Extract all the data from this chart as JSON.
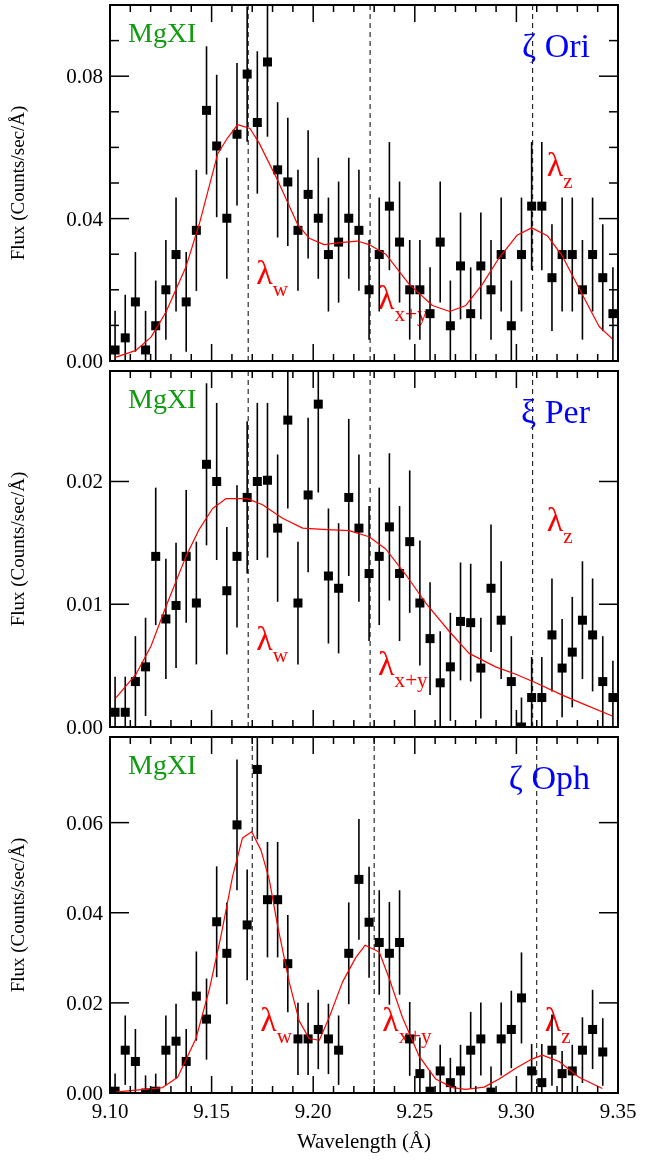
{
  "chart_data": [
    {
      "type": "scatter",
      "ylabel": "Flux (Counts/sec/Å)",
      "xlim": [
        9.1,
        9.35
      ],
      "ylim": [
        0,
        0.1
      ],
      "tick_labels": "y",
      "xticks": [
        9.1,
        {
          "value": 9.11,
          "label": null
        },
        {
          "value": 9.12,
          "label": null
        },
        {
          "value": 9.13,
          "label": null
        },
        {
          "value": 9.14,
          "label": null
        },
        9.15,
        {
          "value": 9.16,
          "label": null
        },
        {
          "value": 9.17,
          "label": null
        },
        {
          "value": 9.18,
          "label": null
        },
        {
          "value": 9.19,
          "label": null
        },
        9.2,
        {
          "value": 9.21,
          "label": null
        },
        {
          "value": 9.22,
          "label": null
        },
        {
          "value": 9.23,
          "label": null
        },
        {
          "value": 9.24,
          "label": null
        },
        9.25,
        {
          "value": 9.26,
          "label": null
        },
        {
          "value": 9.27,
          "label": null
        },
        {
          "value": 9.28,
          "label": null
        },
        {
          "value": 9.29,
          "label": null
        },
        9.3,
        {
          "value": 9.31,
          "label": null
        },
        {
          "value": 9.32,
          "label": null
        },
        {
          "value": 9.33,
          "label": null
        },
        {
          "value": 9.34,
          "label": null
        },
        9.35
      ],
      "yticks": [
        {
          "value": 0,
          "label": "0.00"
        },
        {
          "value": 0.01,
          "label": null
        },
        {
          "value": 0.02,
          "label": null
        },
        {
          "value": 0.03,
          "label": null
        },
        0.04,
        {
          "value": 0.05,
          "label": null
        },
        {
          "value": 0.06,
          "label": null
        },
        {
          "value": 0.07,
          "label": null
        },
        0.08,
        {
          "value": 0.09,
          "label": null
        }
      ],
      "annotations": [
        "MgXI",
        "ζ Ori",
        "λ$_{w}$",
        "λ$_{x+y}$",
        "λ$_{z}$"
      ],
      "ref_lines": [
        {
          "axis": "x",
          "value": 9.168,
          "color": "#000000",
          "line_style": "dashed"
        },
        {
          "axis": "x",
          "value": 9.228,
          "color": "#000000",
          "line_style": "dashed"
        },
        {
          "axis": "x",
          "value": 9.308,
          "color": "#000000",
          "line_style": "dashed"
        }
      ],
      "series": [
        {
          "type": "scatter",
          "color": "#000000",
          "marker": "square",
          "x": [
            9.1025,
            9.1075,
            9.1125,
            9.1175,
            9.1225,
            9.1275,
            9.1325,
            9.1375,
            9.1425,
            9.1475,
            9.1525,
            9.1575,
            9.1625,
            9.1675,
            9.1725,
            9.1775,
            9.1825,
            9.1875,
            9.1925,
            9.1975,
            9.2025,
            9.2075,
            9.2125,
            9.2175,
            9.2225,
            9.2275,
            9.2325,
            9.2375,
            9.2425,
            9.2475,
            9.2525,
            9.2575,
            9.2625,
            9.2675,
            9.2725,
            9.2775,
            9.2825,
            9.2875,
            9.2925,
            9.2975,
            9.3025,
            9.3075,
            9.3125,
            9.3175,
            9.3225,
            9.3275,
            9.3325,
            9.3375,
            9.3425,
            9.3475
          ],
          "values": [
            0.0031,
            0.0065,
            0.0166,
            0.0031,
            0.0099,
            0.02,
            0.0299,
            0.0166,
            0.0367,
            0.0704,
            0.0604,
            0.0401,
            0.0637,
            0.0806,
            0.067,
            0.084,
            0.0537,
            0.0503,
            0.0367,
            0.0468,
            0.0401,
            0.0299,
            0.0334,
            0.0401,
            0.0367,
            0.02,
            0.0299,
            0.0435,
            0.0334,
            0.02,
            0.02,
            0.0133,
            0.0334,
            0.0099,
            0.0267,
            0.0133,
            0.0267,
            0.02,
            0.0299,
            0.0099,
            0.0299,
            0.0435,
            0.0435,
            0.0234,
            0.0299,
            0.0299,
            0.02,
            0.0299,
            0.0234,
            0.0133
          ],
          "errors": [
            [
              0,
              0.0141
            ],
            [
              0,
              0.0186
            ],
            0.014,
            [
              0,
              0.0141
            ],
            [
              0,
              0.0226
            ],
            0.014,
            0.016,
            0.014,
            0.017,
            0.018,
            0.02,
            0.017,
            0.02,
            0.019,
            0.02,
            [
              0.063,
              0.1
            ],
            0.019,
            0.018,
            0.017,
            0.018,
            0.017,
            0.016,
            0.017,
            0.017,
            0.017,
            0.014,
            0.016,
            0.018,
            0.017,
            0.014,
            0.014,
            0.013,
            0.017,
            [
              0,
              0.0226
            ],
            0.015,
            0.013,
            0.015,
            0.014,
            0.016,
            [
              0,
              0.0226
            ],
            0.016,
            0.018,
            0.018,
            0.015,
            0.016,
            0.016,
            0.014,
            0.016,
            0.015,
            0.013
          ]
        },
        {
          "type": "line",
          "color": "#ff0000",
          "marker": "none",
          "x": [
            9.1026,
            9.1128,
            9.1202,
            9.1275,
            9.1374,
            9.1439,
            9.153,
            9.1579,
            9.1628,
            9.1689,
            9.1734,
            9.1825,
            9.1923,
            9.198,
            9.2054,
            9.2144,
            9.2218,
            9.2275,
            9.2357,
            9.2472,
            9.2587,
            9.2672,
            9.2751,
            9.2833,
            9.2915,
            9.3005,
            9.3075,
            9.3152,
            9.3226,
            9.3325,
            9.3407,
            9.3472
          ],
          "values": [
            0.001,
            0.003,
            0.0067,
            0.0137,
            0.0265,
            0.0384,
            0.0582,
            0.0627,
            0.0664,
            0.0653,
            0.0612,
            0.0508,
            0.0384,
            0.0345,
            0.0327,
            0.0333,
            0.0337,
            0.0327,
            0.03,
            0.0216,
            0.0156,
            0.0139,
            0.0156,
            0.0216,
            0.029,
            0.0354,
            0.0374,
            0.0352,
            0.0295,
            0.0186,
            0.0097,
            0.0062
          ]
        }
      ]
    },
    {
      "type": "scatter",
      "ylabel": "Flux (Counts/sec/Å)",
      "xlim": [
        9.1,
        9.35
      ],
      "ylim": [
        0,
        0.029
      ],
      "tick_labels": "y",
      "xticks": [
        9.1,
        {
          "value": 9.11,
          "label": null
        },
        {
          "value": 9.12,
          "label": null
        },
        {
          "value": 9.13,
          "label": null
        },
        {
          "value": 9.14,
          "label": null
        },
        9.15,
        {
          "value": 9.16,
          "label": null
        },
        {
          "value": 9.17,
          "label": null
        },
        {
          "value": 9.18,
          "label": null
        },
        {
          "value": 9.19,
          "label": null
        },
        9.2,
        {
          "value": 9.21,
          "label": null
        },
        {
          "value": 9.22,
          "label": null
        },
        {
          "value": 9.23,
          "label": null
        },
        {
          "value": 9.24,
          "label": null
        },
        9.25,
        {
          "value": 9.26,
          "label": null
        },
        {
          "value": 9.27,
          "label": null
        },
        {
          "value": 9.28,
          "label": null
        },
        {
          "value": 9.29,
          "label": null
        },
        9.3,
        {
          "value": 9.31,
          "label": null
        },
        {
          "value": 9.32,
          "label": null
        },
        {
          "value": 9.33,
          "label": null
        },
        {
          "value": 9.34,
          "label": null
        },
        9.35
      ],
      "yticks": [
        {
          "value": 0,
          "label": "0.00"
        },
        0.01,
        0.02
      ],
      "annotations": [
        "MgXI",
        "ξ Per",
        "λ$_{w}$",
        "λ$_{x+y}$",
        "λ$_{z}$"
      ],
      "ref_lines": [
        {
          "axis": "x",
          "value": 9.168,
          "color": "#000000",
          "line_style": "dashed"
        },
        {
          "axis": "x",
          "value": 9.228,
          "color": "#000000",
          "line_style": "dashed"
        },
        {
          "axis": "x",
          "value": 9.308,
          "color": "#000000",
          "line_style": "dashed"
        }
      ],
      "series": [
        {
          "type": "scatter",
          "color": "#000000",
          "marker": "square",
          "x": [
            9.1025,
            9.1075,
            9.1125,
            9.1175,
            9.1225,
            9.1275,
            9.1325,
            9.1375,
            9.1425,
            9.1475,
            9.1525,
            9.1575,
            9.1625,
            9.1675,
            9.1725,
            9.1775,
            9.1825,
            9.1875,
            9.1925,
            9.1975,
            9.2025,
            9.2075,
            9.2125,
            9.2175,
            9.2225,
            9.2275,
            9.2325,
            9.2375,
            9.2425,
            9.2475,
            9.2525,
            9.2575,
            9.2625,
            9.2675,
            9.2725,
            9.2775,
            9.2825,
            9.2875,
            9.2925,
            9.2975,
            9.3025,
            9.3075,
            9.3125,
            9.3175,
            9.3225,
            9.3275,
            9.3325,
            9.3375,
            9.3425,
            9.3475
          ],
          "values": [
            0.0012,
            0.0012,
            0.0037,
            0.0049,
            0.0139,
            0.0088,
            0.0099,
            0.0139,
            0.0101,
            0.0214,
            0.02,
            0.0111,
            0.0139,
            0.0187,
            0.02,
            0.0201,
            0.0162,
            0.025,
            0.0101,
            0.0189,
            0.0263,
            0.0123,
            0.0113,
            0.0187,
            0.0162,
            0.0125,
            0.0139,
            0.0163,
            0.0125,
            0.0151,
            0.0101,
            0.0072,
            0.0036,
            0.0049,
            0.0086,
            0.0085,
            0.0048,
            0.0113,
            0.0087,
            0.0037,
            0.0,
            0.0024,
            0.0024,
            0.0075,
            0.0048,
            0.0061,
            0.0087,
            0.0075,
            0.0037,
            0.0024
          ],
          "errors": [
            [
              0,
              0.0041
            ],
            [
              0,
              0.0041
            ],
            0.0037,
            0.004,
            0.0056,
            0.0049,
            0.0051,
            0.0054,
            0.005,
            0.0066,
            0.0064,
            0.0052,
            0.0058,
            0.0062,
            0.0064,
            0.0063,
            0.006,
            [
              0.0178,
              0.029
            ],
            0.005,
            0.0063,
            [
              0.0191,
              0.029
            ],
            0.0055,
            0.0053,
            0.0064,
            0.006,
            0.0055,
            0.0056,
            0.006,
            0.0055,
            0.0058,
            0.0051,
            0.0046,
            [
              0,
              0.0078
            ],
            0.0044,
            0.0048,
            0.0048,
            0.0041,
            0.0052,
            0.0048,
            0.0037,
            [
              0,
              0.0024
            ],
            [
              0,
              0.0057
            ],
            [
              0,
              0.0057
            ],
            0.0046,
            0.004,
            0.0045,
            0.0048,
            0.0046,
            0.0037,
            [
              0,
              0.0054
            ]
          ]
        },
        {
          "type": "line",
          "color": "#ff0000",
          "marker": "none",
          "x": [
            9.103,
            9.1128,
            9.1202,
            9.1275,
            9.1374,
            9.1439,
            9.1505,
            9.157,
            9.1677,
            9.1751,
            9.1849,
            9.1948,
            9.2046,
            9.2177,
            9.2275,
            9.2357,
            9.2456,
            9.2554,
            9.2669,
            9.2767,
            9.2898,
            9.2997,
            9.3095,
            9.3226,
            9.3325,
            9.3472
          ],
          "values": [
            0.0024,
            0.0043,
            0.0066,
            0.0098,
            0.0139,
            0.0161,
            0.0178,
            0.0186,
            0.0186,
            0.0181,
            0.017,
            0.0162,
            0.0161,
            0.016,
            0.0155,
            0.0145,
            0.0124,
            0.0101,
            0.0078,
            0.006,
            0.0049,
            0.0043,
            0.0036,
            0.0026,
            0.0019,
            0.0009
          ]
        }
      ]
    },
    {
      "type": "scatter",
      "xlabel": "Wavelength (Å)",
      "ylabel": "Flux (Counts/sec/Å)",
      "xlim": [
        9.1,
        9.35
      ],
      "ylim": [
        0,
        0.079
      ],
      "xticks": [
        {
          "value": 9.1,
          "label": "9.10"
        },
        {
          "value": 9.11,
          "label": null
        },
        {
          "value": 9.12,
          "label": null
        },
        {
          "value": 9.13,
          "label": null
        },
        {
          "value": 9.14,
          "label": null
        },
        9.15,
        {
          "value": 9.16,
          "label": null
        },
        {
          "value": 9.17,
          "label": null
        },
        {
          "value": 9.18,
          "label": null
        },
        {
          "value": 9.19,
          "label": null
        },
        {
          "value": 9.2,
          "label": "9.20"
        },
        {
          "value": 9.21,
          "label": null
        },
        {
          "value": 9.22,
          "label": null
        },
        {
          "value": 9.23,
          "label": null
        },
        {
          "value": 9.24,
          "label": null
        },
        9.25,
        {
          "value": 9.26,
          "label": null
        },
        {
          "value": 9.27,
          "label": null
        },
        {
          "value": 9.28,
          "label": null
        },
        {
          "value": 9.29,
          "label": null
        },
        {
          "value": 9.3,
          "label": "9.30"
        },
        {
          "value": 9.31,
          "label": null
        },
        {
          "value": 9.32,
          "label": null
        },
        {
          "value": 9.33,
          "label": null
        },
        {
          "value": 9.34,
          "label": null
        },
        9.35
      ],
      "yticks": [
        {
          "value": 0,
          "label": "0.00"
        },
        0.02,
        0.04,
        0.06
      ],
      "annotations": [
        "MgXI",
        "ζ Oph",
        "λ$_{w}$",
        "λ$_{x+y}$",
        "λ$_{z}$"
      ],
      "ref_lines": [
        {
          "axis": "x",
          "value": 9.17,
          "color": "#000000",
          "line_style": "dashed"
        },
        {
          "axis": "x",
          "value": 9.23,
          "color": "#000000",
          "line_style": "dashed"
        },
        {
          "axis": "x",
          "value": 9.31,
          "color": "#000000",
          "line_style": "dashed"
        }
      ],
      "series": [
        {
          "type": "scatter",
          "color": "#000000",
          "marker": "square",
          "x": [
            9.1025,
            9.1075,
            9.1125,
            9.1175,
            9.1225,
            9.1275,
            9.1325,
            9.1375,
            9.1425,
            9.1475,
            9.1525,
            9.1575,
            9.1625,
            9.1675,
            9.1725,
            9.1775,
            9.1825,
            9.1875,
            9.1925,
            9.1975,
            9.2025,
            9.2075,
            9.2125,
            9.2175,
            9.2225,
            9.2275,
            9.2325,
            9.2375,
            9.2425,
            9.2475,
            9.2525,
            9.2575,
            9.2625,
            9.2675,
            9.2725,
            9.2775,
            9.2825,
            9.2875,
            9.2925,
            9.2975,
            9.3025,
            9.3075,
            9.3125,
            9.3175,
            9.3225,
            9.3275,
            9.3325,
            9.3375,
            9.3425
          ],
          "values": [
            0.0004,
            0.0095,
            0.007,
            0.0,
            0.0004,
            0.0095,
            0.0115,
            0.007,
            0.0215,
            0.0164,
            0.038,
            0.031,
            0.0595,
            0.0373,
            0.0718,
            0.0429,
            0.0429,
            0.0287,
            0.012,
            0.012,
            0.0141,
            0.012,
            0.0095,
            0.031,
            0.0474,
            0.0379,
            0.0334,
            0.031,
            0.0334,
            0.012,
            0.0043,
            0.0004,
            0.0049,
            0.0023,
            0.0049,
            0.0095,
            0.012,
            0.0002,
            0.012,
            0.0141,
            0.0211,
            0.0049,
            0.0023,
            0.0095,
            0.0043,
            0.0049,
            0.0095,
            0.0141,
            0.0091
          ],
          "errors": [
            [
              0,
              0.0043
            ],
            0.0077,
            [
              0,
              0.0142
            ],
            [
              0,
              0.0039
            ],
            [
              0,
              0.0043
            ],
            0.0077,
            0.0083,
            [
              0,
              0.0142
            ],
            0.0099,
            0.009,
            0.0123,
            0.0113,
            0.0145,
            0.0123,
            [
              0.0563,
              0.079
            ],
            0.0128,
            0.0128,
            0.0108,
            0.008,
            0.008,
            0.0088,
            0.0078,
            0.0077,
            0.0113,
            0.0134,
            0.0123,
            0.0116,
            0.0114,
            0.0116,
            0.0082,
            [
              0,
              0.0123
            ],
            [
              0,
              0.005
            ],
            [
              0,
              0.0107
            ],
            [
              0,
              0.0078
            ],
            [
              0,
              0.0107
            ],
            0.0085,
            0.0081,
            [
              0,
              0.0059
            ],
            0.0081,
            0.0086,
            0.0101,
            [
              0,
              0.0109
            ],
            [
              0,
              0.0109
            ],
            0.0079,
            [
              0,
              0.0093
            ],
            [
              0,
              0.0107
            ],
            0.0073,
            0.0088,
            0.0075
          ]
        },
        {
          "type": "line",
          "color": "#ff0000",
          "marker": "none",
          "x": [
            9.1026,
            9.1259,
            9.1333,
            9.1423,
            9.1489,
            9.1546,
            9.1603,
            9.1652,
            9.1697,
            9.1743,
            9.1784,
            9.1825,
            9.1882,
            9.1931,
            9.198,
            9.203,
            9.2079,
            9.2144,
            9.221,
            9.2256,
            9.2325,
            9.2374,
            9.2439,
            9.2521,
            9.2603,
            9.2685,
            9.2751,
            9.2841,
            9.2915,
            9.2997,
            9.307,
            9.3128,
            9.321,
            9.3308,
            9.3423
          ],
          "values": [
            0.0002,
            0.0012,
            0.0035,
            0.0121,
            0.023,
            0.0348,
            0.048,
            0.0566,
            0.058,
            0.0539,
            0.0473,
            0.0371,
            0.0246,
            0.016,
            0.0121,
            0.0117,
            0.0168,
            0.0246,
            0.0301,
            0.0328,
            0.0313,
            0.0254,
            0.0168,
            0.0082,
            0.0031,
            0.0012,
            0.0008,
            0.0013,
            0.0031,
            0.0055,
            0.0074,
            0.0084,
            0.007,
            0.0035,
            0.001
          ]
        }
      ]
    }
  ]
}
